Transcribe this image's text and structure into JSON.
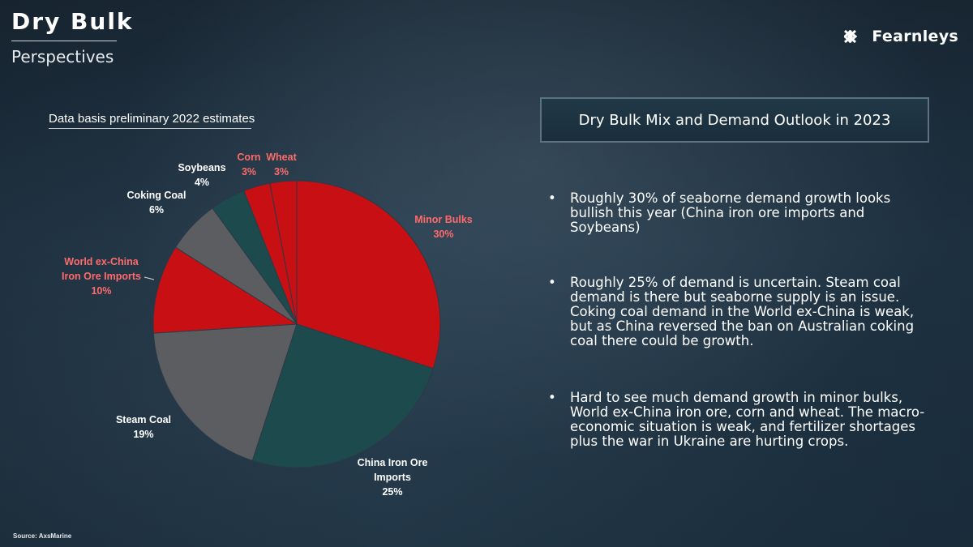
{
  "header": {
    "title": "Dry Bulk",
    "subtitle": "Perspectives",
    "logo_text": "Fearnleys",
    "logo_icon": "fearnleys-xx-icon"
  },
  "note": "Data basis preliminary 2022 estimates",
  "chart_data": {
    "type": "pie",
    "slices": [
      {
        "label": "Minor Bulks",
        "value": 30,
        "value_label": "30%",
        "color": "#c80f14",
        "label_color": "#ff6b6b"
      },
      {
        "label": "China Iron Ore Imports",
        "value": 25,
        "value_label": "25%",
        "color": "#1d4a4d",
        "label_color": "#ffffff"
      },
      {
        "label": "Steam Coal",
        "value": 19,
        "value_label": "19%",
        "color": "#5b5d61",
        "label_color": "#ffffff"
      },
      {
        "label": "World ex-China Iron Ore Imports",
        "value": 10,
        "value_label": "10%",
        "color": "#c80f14",
        "label_color": "#ff6b6b"
      },
      {
        "label": "Coking Coal",
        "value": 6,
        "value_label": "6%",
        "color": "#5b5d61",
        "label_color": "#ffffff"
      },
      {
        "label": "Soybeans",
        "value": 4,
        "value_label": "4%",
        "color": "#1d4a4d",
        "label_color": "#ffffff"
      },
      {
        "label": "Corn",
        "value": 3,
        "value_label": "3%",
        "color": "#c80f14",
        "label_color": "#ff6b6b"
      },
      {
        "label": "Wheat",
        "value": 3,
        "value_label": "3%",
        "color": "#c80f14",
        "label_color": "#ff6b6b"
      }
    ],
    "colors": {
      "highlight": "#c80f14",
      "teal": "#1d4a4d",
      "grey": "#5b5d61"
    }
  },
  "outlook": {
    "title": "Dry Bulk Mix and Demand Outlook in 2023",
    "bullets": [
      "Roughly 30% of seaborne demand growth looks bullish this year (China iron ore imports and Soybeans)",
      "Roughly 25% of demand is uncertain. Steam coal demand is there but seaborne supply is an issue. Coking coal demand in the World ex-China is weak, but as China reversed the ban on Australian coking coal there could be growth.",
      "Hard to see much demand growth in minor bulks, World ex-China iron ore, corn and wheat. The macro-economic situation is weak, and fertilizer shortages plus the war in Ukraine are hurting crops."
    ]
  },
  "source": "Source: AxsMarine"
}
